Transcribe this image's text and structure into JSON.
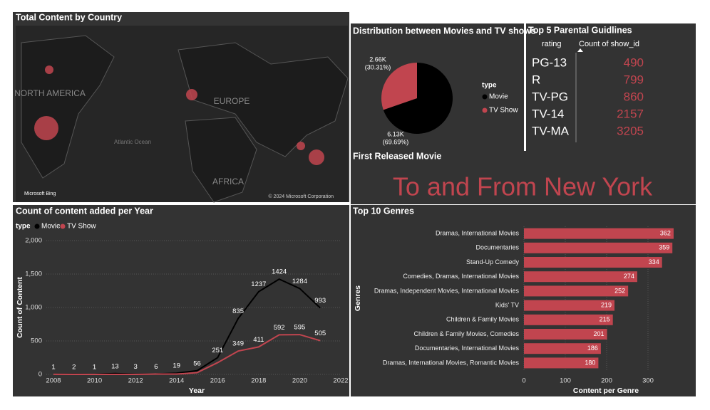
{
  "map": {
    "title": "Total Content by Country",
    "labels": [
      "NORTH AMERICA",
      "EUROPE",
      "AFRICA",
      "Atlantic Ocean"
    ],
    "attribution": "Microsoft Bing",
    "copyright": "© 2024 Microsoft Corporation"
  },
  "table": {
    "title": "Top 5 Parental Guidlines",
    "columns": [
      "rating",
      "Count of show_id"
    ],
    "rows": [
      [
        "PG-13",
        490
      ],
      [
        "R",
        799
      ],
      [
        "TV-PG",
        860
      ],
      [
        "TV-14",
        2157
      ],
      [
        "TV-MA",
        3205
      ]
    ]
  },
  "card": {
    "title": "First Released Movie",
    "value": "To and From New York"
  },
  "chart_data": [
    {
      "type": "pie",
      "title": "Distribution between Movies and TV shows",
      "legend_title": "type",
      "categories": [
        "Movie",
        "TV Show"
      ],
      "values": [
        69.69,
        30.31
      ],
      "value_labels": [
        "(69.69%)",
        "(30.31%)"
      ],
      "count_labels": [
        "6.13K",
        "2.66K"
      ],
      "colors": [
        "#000000",
        "#c1454f"
      ]
    },
    {
      "type": "line",
      "title": "Count of content added per Year",
      "legend_title": "type",
      "x_label": "Year",
      "y_label": "Count of Content",
      "x": [
        2008,
        2009,
        2010,
        2011,
        2012,
        2013,
        2014,
        2015,
        2016,
        2017,
        2018,
        2019,
        2020,
        2021
      ],
      "series": [
        {
          "name": "Movie",
          "color": "#000000",
          "values": [
            1,
            2,
            1,
            13,
            3,
            6,
            19,
            56,
            251,
            835,
            1237,
            1424,
            1284,
            993
          ]
        },
        {
          "name": "TV Show",
          "color": "#c1454f",
          "values": [
            1,
            0,
            0,
            0,
            0,
            5,
            5,
            26,
            176,
            349,
            411,
            592,
            595,
            505
          ],
          "value_labels": [
            null,
            null,
            null,
            null,
            null,
            null,
            null,
            null,
            null,
            "349",
            "411",
            "592",
            "595",
            "505"
          ]
        }
      ],
      "xlim": [
        2008,
        2022
      ],
      "xticks": [
        2008,
        2010,
        2012,
        2014,
        2016,
        2018,
        2020,
        2022
      ],
      "ylim": [
        0,
        2000
      ],
      "yticks": [
        0,
        500,
        {
          "value": 1000,
          "label": "1,000"
        },
        {
          "value": 1500,
          "label": "1,500"
        },
        {
          "value": 2000,
          "label": "2,000"
        }
      ],
      "grid": true
    },
    {
      "type": "hbar",
      "title": "Top 10 Genres",
      "x_label": "Content per Genre",
      "y_label": "Genres",
      "color": "#c1454f",
      "categories": [
        "Dramas, International Movies",
        "Documentaries",
        "Stand-Up Comedy",
        "Comedies, Dramas, International Movies",
        "Dramas, Independent Movies, International Movies",
        "Kids' TV",
        "Children & Family Movies",
        "Children & Family Movies, Comedies",
        "Documentaries, International Movies",
        "Dramas, International Movies, Romantic Movies"
      ],
      "values": [
        362,
        359,
        334,
        274,
        252,
        219,
        215,
        201,
        186,
        180
      ],
      "xlim": [
        0,
        400
      ],
      "xticks": [
        0,
        100,
        200,
        300
      ],
      "grid": true
    }
  ]
}
